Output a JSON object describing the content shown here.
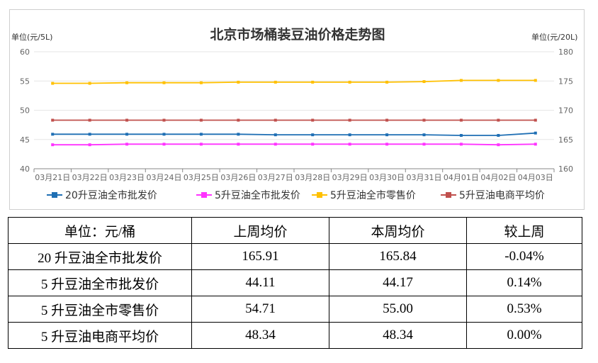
{
  "chart_data": {
    "type": "line",
    "title": "北京市场桶装豆油价格走势图",
    "left_axis_unit": "单位(元/5L)",
    "right_axis_unit": "单位(元/20L)",
    "ylim_left": [
      40,
      60
    ],
    "ylim_right": [
      160,
      180
    ],
    "yticks_left": [
      "40",
      "45",
      "50",
      "55",
      "60"
    ],
    "yticks_right": [
      "160",
      "165",
      "170",
      "175",
      "180"
    ],
    "categories": [
      "03月21日",
      "03月22日",
      "03月23日",
      "03月24日",
      "03月25日",
      "03月26日",
      "03月27日",
      "03月28日",
      "03月29日",
      "03月30日",
      "03月31日",
      "04月01日",
      "04月02日",
      "04月03日"
    ],
    "grid": true,
    "legend_position": "bottom",
    "series": [
      {
        "name": "20升豆油全市批发价",
        "axis": "right",
        "color": "#1f6fb4",
        "values": [
          165.9,
          165.9,
          165.9,
          165.9,
          165.9,
          165.9,
          165.8,
          165.8,
          165.8,
          165.8,
          165.8,
          165.7,
          165.7,
          166.1
        ]
      },
      {
        "name": "5升豆油全市批发价",
        "axis": "left",
        "color": "#ff33ff",
        "values": [
          44.1,
          44.1,
          44.2,
          44.2,
          44.2,
          44.2,
          44.2,
          44.2,
          44.2,
          44.2,
          44.2,
          44.2,
          44.1,
          44.2
        ]
      },
      {
        "name": "5升豆油全市零售价",
        "axis": "left",
        "color": "#ffc000",
        "values": [
          54.6,
          54.6,
          54.7,
          54.7,
          54.7,
          54.8,
          54.8,
          54.8,
          54.8,
          54.8,
          54.9,
          55.1,
          55.1,
          55.1
        ]
      },
      {
        "name": "5升豆油电商平均价",
        "axis": "left",
        "color": "#c0504d",
        "values": [
          48.3,
          48.3,
          48.3,
          48.3,
          48.3,
          48.3,
          48.3,
          48.3,
          48.3,
          48.3,
          48.3,
          48.3,
          48.3,
          48.3
        ]
      }
    ]
  },
  "table": {
    "header": [
      "单位：元/桶",
      "上周均价",
      "本周均价",
      "较上周"
    ],
    "rows": [
      [
        "20 升豆油全市批发价",
        "165.91",
        "165.84",
        "-0.04%"
      ],
      [
        "5 升豆油全市批发价",
        "44.11",
        "44.17",
        "0.14%"
      ],
      [
        "5 升豆油全市零售价",
        "54.71",
        "55.00",
        "0.53%"
      ],
      [
        "5 升豆油电商平均价",
        "48.34",
        "48.34",
        "0.00%"
      ]
    ]
  }
}
